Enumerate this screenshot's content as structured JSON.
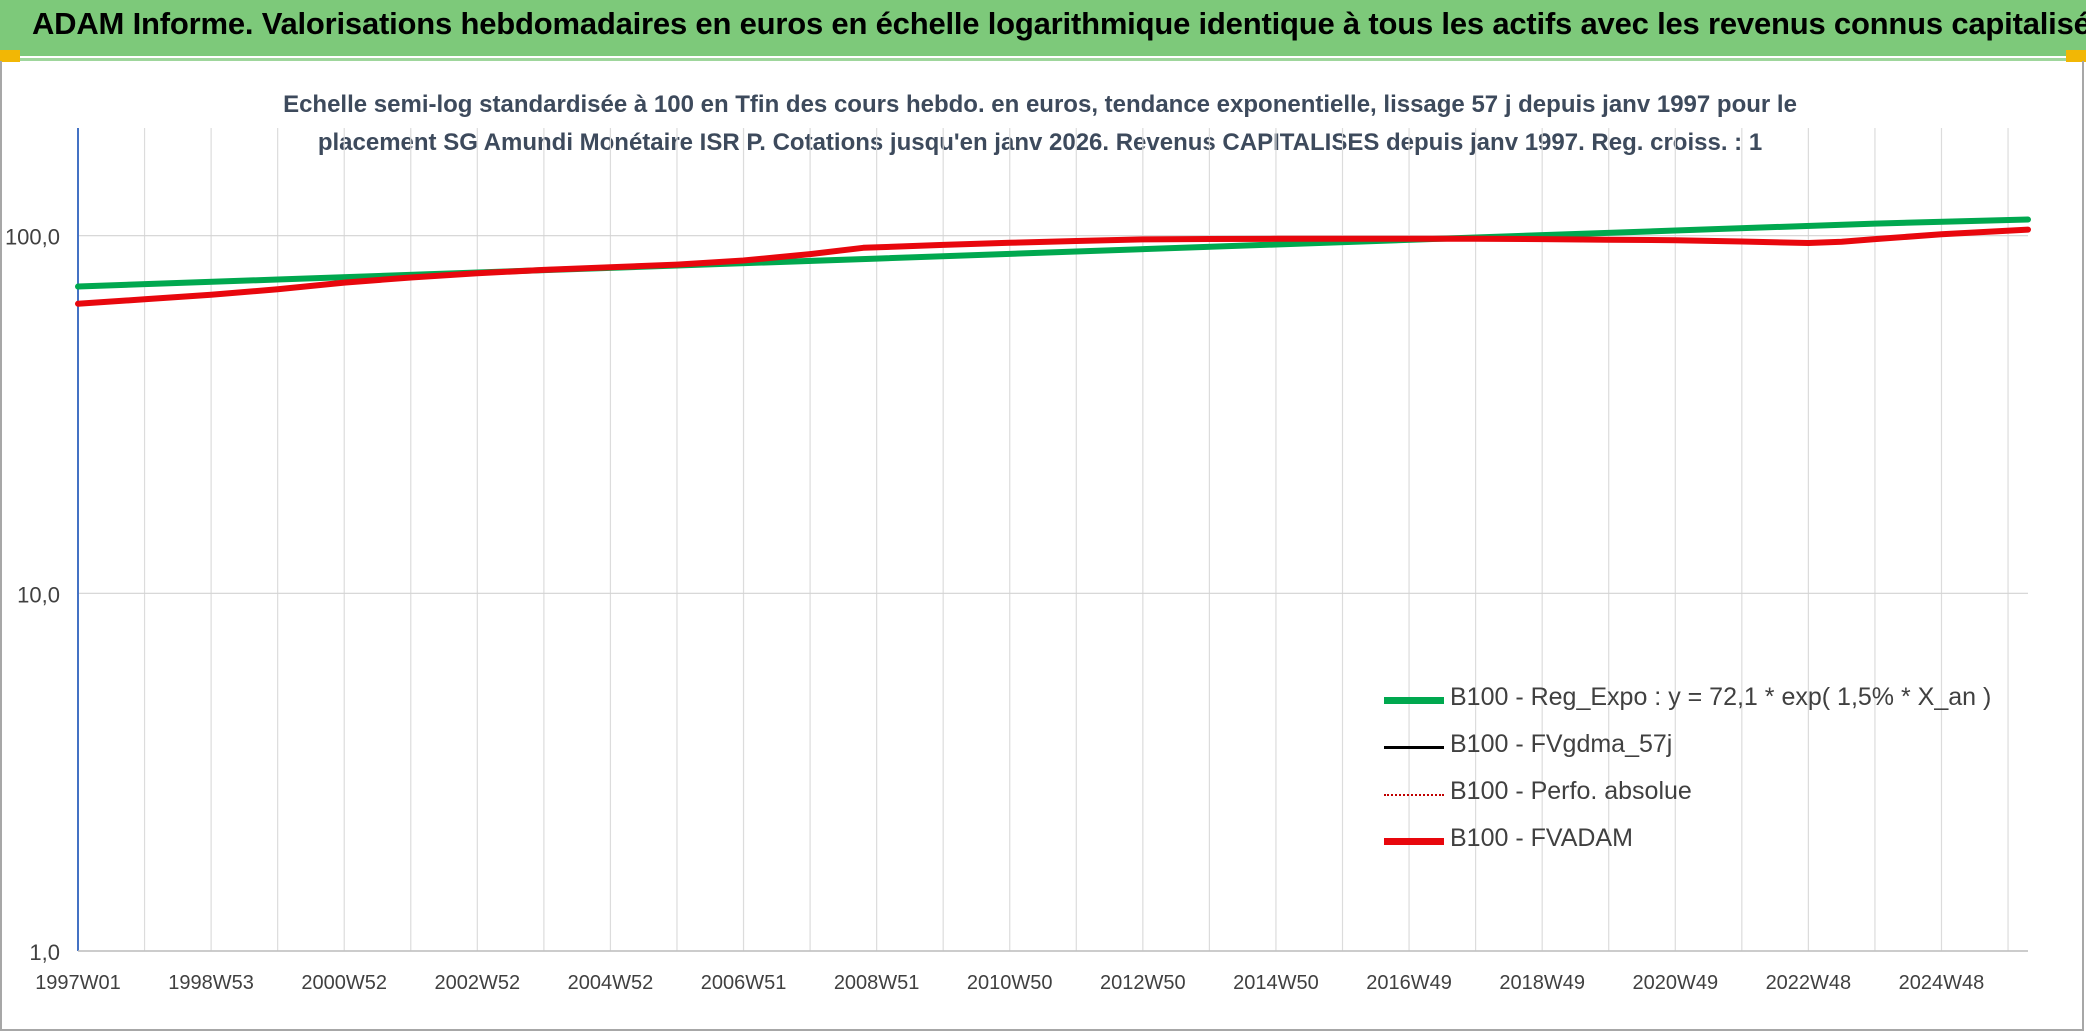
{
  "header": {
    "title": "ADAM Informe. Valorisations hebdomadaires en euros en échelle logarithmique identique à tous les actifs avec les revenus connus capitalisés"
  },
  "colors": {
    "banner": "#7dc97a",
    "corner_accent": "#f2b705",
    "reg_expo": "#00a84f",
    "fvgdma": "#000000",
    "perfo": "#c00000",
    "fvadam": "#e8070d"
  },
  "chart_data": {
    "type": "line",
    "title": "Echelle semi-log standardisée à 100 en Tfin des cours hebdo. en euros, tendance exponentielle, lissage 57 j depuis janv 1997 pour le placement SG Amundi Monétaire ISR P. Cotations jusqu'en janv 2026. Revenus CAPITALISES depuis janv 1997. Reg. croiss. : 1",
    "title_lines": [
      "Echelle semi-log standardisée à 100 en Tfin des cours hebdo. en euros, tendance exponentielle, lissage 57 j depuis janv 1997 pour le",
      "placement SG Amundi Monétaire ISR P. Cotations jusqu'en janv 2026. Revenus CAPITALISES depuis janv 1997. Reg. croiss. : 1"
    ],
    "y_scale": "log",
    "ylim": [
      1,
      200
    ],
    "y_ticks": [
      {
        "value": 1,
        "label": "1,0"
      },
      {
        "value": 10,
        "label": "10,0"
      },
      {
        "value": 100,
        "label": "100,0"
      }
    ],
    "xlim": [
      1997.0,
      2026.3
    ],
    "x_ticks": [
      {
        "x": 1997.0,
        "label": "1997W01"
      },
      {
        "x": 1999.0,
        "label": "1998W53"
      },
      {
        "x": 2001.0,
        "label": "2000W52"
      },
      {
        "x": 2003.0,
        "label": "2002W52"
      },
      {
        "x": 2005.0,
        "label": "2004W52"
      },
      {
        "x": 2007.0,
        "label": "2006W51"
      },
      {
        "x": 2009.0,
        "label": "2008W51"
      },
      {
        "x": 2011.0,
        "label": "2010W50"
      },
      {
        "x": 2013.0,
        "label": "2012W50"
      },
      {
        "x": 2015.0,
        "label": "2014W50"
      },
      {
        "x": 2017.0,
        "label": "2016W49"
      },
      {
        "x": 2019.0,
        "label": "2018W49"
      },
      {
        "x": 2021.0,
        "label": "2020W49"
      },
      {
        "x": 2023.0,
        "label": "2022W48"
      },
      {
        "x": 2025.0,
        "label": "2024W48"
      }
    ],
    "grid_vertical_step_years": 1,
    "legend_position": "bottom-right",
    "series": [
      {
        "name": "B100 - Reg_Expo : y = 72,1 * exp( 1,5% *  X_an )",
        "style": "solid",
        "color": "#00a84f",
        "x": [
          1997.0,
          2000.0,
          2003.0,
          2006.0,
          2009.0,
          2012.0,
          2015.0,
          2018.0,
          2021.0,
          2024.0,
          2026.3
        ],
        "values": [
          72.1,
          75.4,
          78.9,
          82.5,
          86.3,
          90.3,
          94.5,
          98.8,
          103.4,
          108.1,
          111.0
        ]
      },
      {
        "name": "B100 - FVgdma_57j",
        "style": "solid",
        "color": "#000000",
        "x": [
          1997.0,
          1998.0,
          1999.0,
          2000.0,
          2001.0,
          2002.0,
          2003.0,
          2004.0,
          2005.0,
          2006.0,
          2007.0,
          2008.0,
          2008.8,
          2010.0,
          2011.0,
          2012.0,
          2013.0,
          2014.0,
          2015.0,
          2016.0,
          2017.0,
          2018.0,
          2019.0,
          2020.0,
          2021.0,
          2022.0,
          2023.0,
          2023.5,
          2024.0,
          2025.0,
          2026.3
        ],
        "values": [
          64.5,
          66.4,
          68.4,
          70.8,
          73.9,
          76.4,
          78.5,
          80.2,
          81.6,
          83.0,
          85.2,
          88.8,
          92.5,
          94.2,
          95.5,
          96.6,
          97.6,
          97.9,
          98.0,
          98.0,
          98.0,
          98.0,
          97.8,
          97.4,
          97.1,
          96.3,
          95.4,
          96.2,
          97.8,
          100.9,
          104.0
        ]
      },
      {
        "name": "B100 - Perfo. absolue",
        "style": "dotted",
        "color": "#c00000",
        "x": [
          1997.0,
          1998.0,
          1999.0,
          2000.0,
          2001.0,
          2002.0,
          2003.0,
          2004.0,
          2005.0,
          2006.0,
          2007.0,
          2008.0,
          2008.8,
          2010.0,
          2011.0,
          2012.0,
          2013.0,
          2014.0,
          2015.0,
          2016.0,
          2017.0,
          2018.0,
          2019.0,
          2020.0,
          2021.0,
          2022.0,
          2023.0,
          2023.5,
          2024.0,
          2025.0,
          2026.3
        ],
        "values": [
          64.5,
          66.4,
          68.4,
          70.8,
          73.9,
          76.4,
          78.5,
          80.2,
          81.6,
          83.0,
          85.2,
          88.8,
          92.5,
          94.2,
          95.5,
          96.6,
          97.6,
          97.9,
          98.0,
          98.0,
          98.0,
          98.0,
          97.8,
          97.4,
          97.1,
          96.3,
          95.4,
          96.2,
          97.8,
          100.9,
          104.0
        ]
      },
      {
        "name": "B100 - FVADAM",
        "style": "solid",
        "color": "#e8070d",
        "x": [
          1997.0,
          1998.0,
          1999.0,
          2000.0,
          2001.0,
          2002.0,
          2003.0,
          2004.0,
          2005.0,
          2006.0,
          2007.0,
          2008.0,
          2008.8,
          2010.0,
          2011.0,
          2012.0,
          2013.0,
          2014.0,
          2015.0,
          2016.0,
          2017.0,
          2018.0,
          2019.0,
          2020.0,
          2021.0,
          2022.0,
          2023.0,
          2023.5,
          2024.0,
          2025.0,
          2026.3
        ],
        "values": [
          64.5,
          66.4,
          68.4,
          70.8,
          73.9,
          76.4,
          78.5,
          80.2,
          81.6,
          83.0,
          85.2,
          88.8,
          92.5,
          94.2,
          95.5,
          96.6,
          97.6,
          97.9,
          98.0,
          98.0,
          98.0,
          98.0,
          97.8,
          97.4,
          97.1,
          96.3,
          95.4,
          96.2,
          97.8,
          100.9,
          104.0
        ]
      }
    ]
  }
}
